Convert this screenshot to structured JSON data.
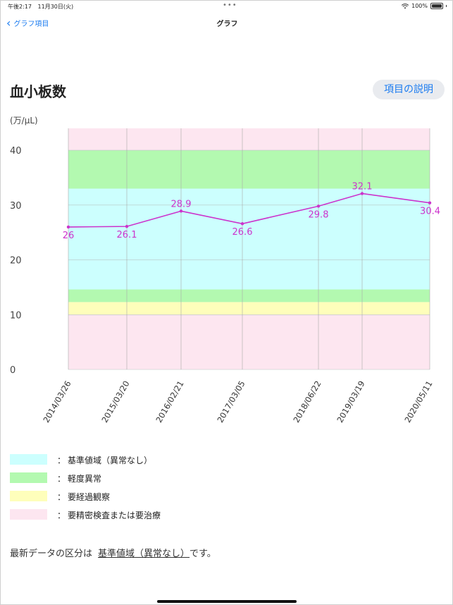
{
  "status": {
    "time": "午後2:17",
    "date": "11月30日(火)",
    "battery": "100%"
  },
  "nav": {
    "back_label": "グラフ項目",
    "title": "グラフ"
  },
  "page": {
    "title": "血小板数",
    "explain_button": "項目の説明",
    "unit": "(万/μL)"
  },
  "colors": {
    "normal": "#ccfffe",
    "mild": "#b3f9b0",
    "observe": "#fefebb",
    "treat": "#fde6f0",
    "line": "#cc33cc"
  },
  "chart_data": {
    "type": "line",
    "categories": [
      "2014/03/26",
      "2015/03/20",
      "2016/02/21",
      "2017/03/05",
      "2018/06/22",
      "2019/03/19",
      "2020/05/11"
    ],
    "values": [
      26,
      26.1,
      28.9,
      26.6,
      29.8,
      32.1,
      30.4
    ],
    "value_labels": [
      "26",
      "26.1",
      "28.9",
      "26.6",
      "29.8",
      "32.1",
      "30.4"
    ],
    "y_ticks": [
      "40",
      "30",
      "20",
      "10",
      "0"
    ],
    "ylim": [
      0,
      44
    ],
    "bands": [
      {
        "name": "要精密検査または要治療",
        "from": 0,
        "to": 10
      },
      {
        "name": "要経過観察",
        "from": 10,
        "to": 12.3
      },
      {
        "name": "軽度異常",
        "from": 12.3,
        "to": 14.6
      },
      {
        "name": "基準値域（異常なし）",
        "from": 14.6,
        "to": 33
      },
      {
        "name": "軽度異常",
        "from": 33,
        "to": 40
      },
      {
        "name": "要精密検査または要治療",
        "from": 40,
        "to": 44
      }
    ],
    "grid": true
  },
  "legend": [
    {
      "key": "normal",
      "label": "基準値域（異常なし）"
    },
    {
      "key": "mild",
      "label": "軽度異常"
    },
    {
      "key": "observe",
      "label": "要経過観察"
    },
    {
      "key": "treat",
      "label": "要精密検査または要治療"
    }
  ],
  "legend_colon": "：",
  "summary": {
    "prefix": "最新データの区分は",
    "category": "基準値域（異常なし）",
    "suffix": "です。"
  }
}
